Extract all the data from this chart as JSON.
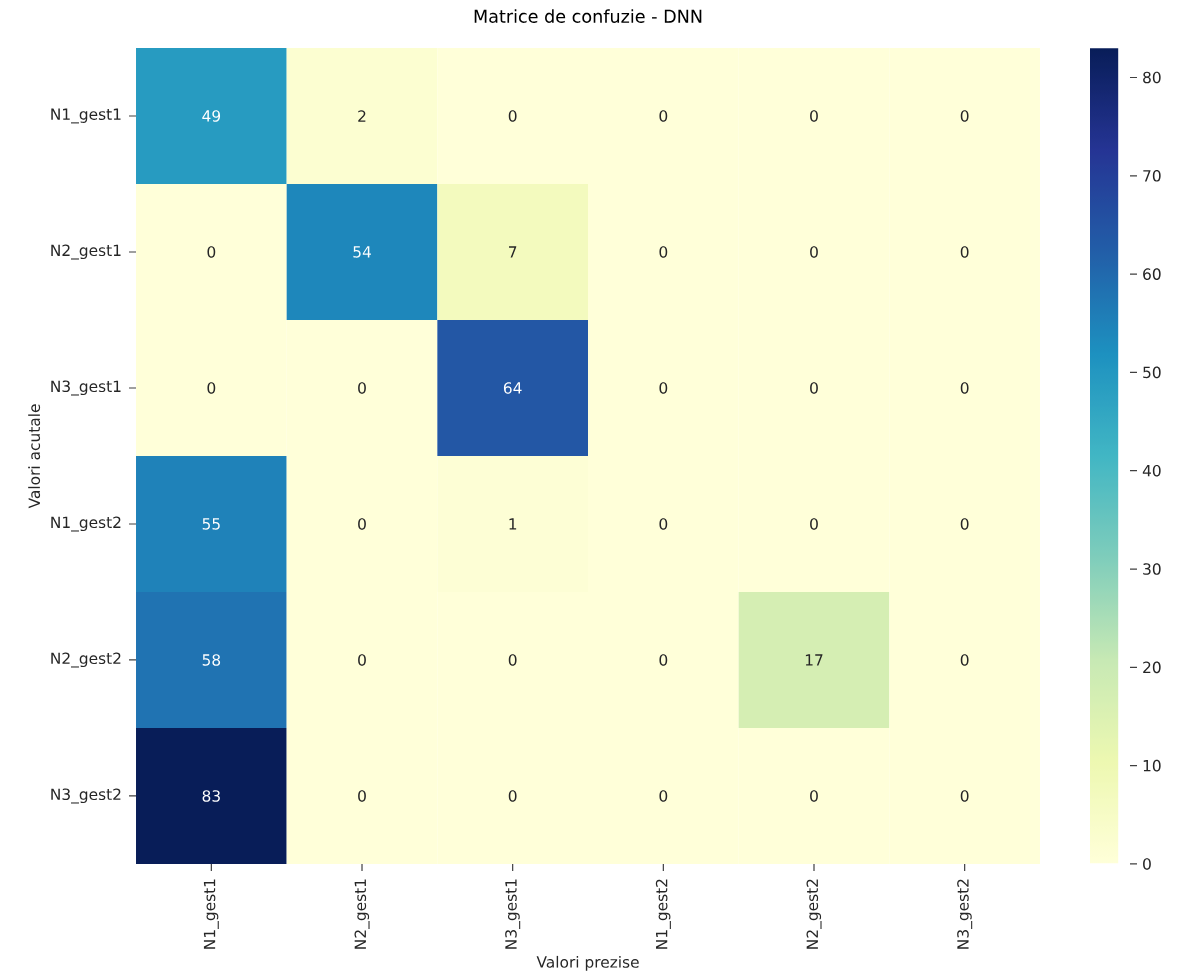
{
  "chart_data": {
    "type": "heatmap",
    "title": "Matrice de confuzie - DNN",
    "xlabel": "Valori prezise",
    "ylabel": "Valori acutale",
    "categories": [
      "N1_gest1",
      "N2_gest1",
      "N3_gest1",
      "N1_gest2",
      "N2_gest2",
      "N3_gest2"
    ],
    "y_categories": [
      "N1_gest1",
      "N2_gest1",
      "N3_gest1",
      "N1_gest2",
      "N2_gest2",
      "N3_gest2"
    ],
    "cells": [
      [
        49,
        2,
        0,
        0,
        0,
        0
      ],
      [
        0,
        54,
        7,
        0,
        0,
        0
      ],
      [
        0,
        0,
        64,
        0,
        0,
        0
      ],
      [
        55,
        0,
        1,
        0,
        0,
        0
      ],
      [
        58,
        0,
        0,
        0,
        17,
        0
      ],
      [
        83,
        0,
        0,
        0,
        0,
        0
      ]
    ],
    "data_labels": true,
    "clim": [
      0,
      83
    ],
    "cticks": [
      0,
      10,
      20,
      30,
      40,
      50,
      60,
      70,
      80
    ]
  }
}
